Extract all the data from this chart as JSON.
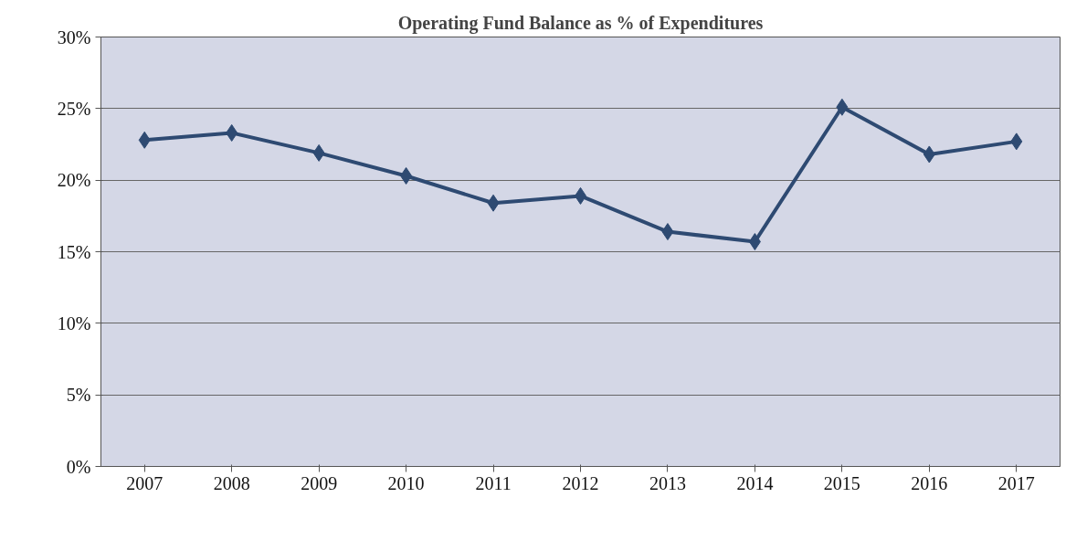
{
  "chart_data": {
    "type": "line",
    "title": "Operating Fund Balance as % of Expenditures",
    "categories": [
      "2007",
      "2008",
      "2009",
      "2010",
      "2011",
      "2012",
      "2013",
      "2014",
      "2015",
      "2016",
      "2017"
    ],
    "series": [
      {
        "color": "#2e4a72",
        "values": [
          22.8,
          23.3,
          21.9,
          20.3,
          18.4,
          18.9,
          16.4,
          15.7,
          25.1,
          21.8,
          22.7
        ]
      }
    ],
    "ylim": [
      0,
      30
    ],
    "yticks": [
      {
        "value": 0,
        "label": "0%"
      },
      {
        "value": 5,
        "label": "5%"
      },
      {
        "value": 10,
        "label": "10%"
      },
      {
        "value": 15,
        "label": "15%"
      },
      {
        "value": 20,
        "label": "20%"
      },
      {
        "value": 25,
        "label": "25%"
      },
      {
        "value": 30,
        "label": "30%"
      }
    ],
    "grid": "y",
    "marker": "diamond",
    "line_style": "solid"
  }
}
